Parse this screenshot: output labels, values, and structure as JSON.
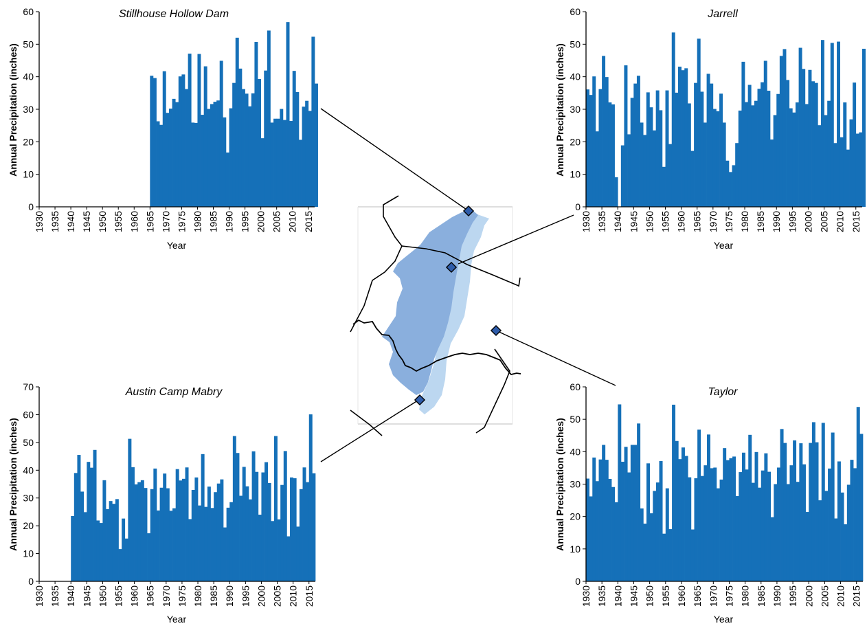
{
  "chart_data": [
    {
      "type": "bar",
      "title": "Stillhouse Hollow Dam",
      "xlabel": "Year",
      "ylabel": "Annual Precipitation (inches)",
      "ylim": [
        0,
        60
      ],
      "yticks": [
        0,
        10,
        20,
        30,
        40,
        50,
        60
      ],
      "xlim": [
        1930,
        2017
      ],
      "xtick_labels": [
        "1930",
        "1935",
        "1940",
        "1945",
        "1950",
        "1955",
        "1960",
        "1965",
        "1970",
        "1975",
        "1980",
        "1985",
        "1990",
        "1995",
        "2000",
        "2005",
        "2010",
        "2015"
      ],
      "bar_color": "#1570b8",
      "x_start": 1930,
      "values": [
        0,
        0,
        0,
        0,
        0,
        0,
        0,
        0,
        0,
        0,
        0,
        0,
        0,
        0,
        0,
        0,
        0,
        0,
        0,
        0,
        0,
        0,
        0,
        0,
        0,
        0,
        0,
        0,
        0,
        0,
        0,
        0,
        0,
        0,
        0,
        40.3,
        39.6,
        26.3,
        25.2,
        41.7,
        28.9,
        30.2,
        33.2,
        32.2,
        40.1,
        40.7,
        36.2,
        47.1,
        25.9,
        25.8,
        47.0,
        28.3,
        43.2,
        30.1,
        31.6,
        32.3,
        32.7,
        44.9,
        27.5,
        16.7,
        30.3,
        38.1,
        52.0,
        42.5,
        36.2,
        34.8,
        30.9,
        34.9,
        50.7,
        39.3,
        21.1,
        41.9,
        54.2,
        25.9,
        27.1,
        27.1,
        30.1,
        26.7,
        56.8,
        26.4,
        41.8,
        35.3,
        20.6,
        30.8,
        32.6,
        29.5,
        52.3,
        37.9
      ]
    },
    {
      "type": "bar",
      "title": "Jarrell",
      "xlabel": "Year",
      "ylabel": "Annual Precipitation (inches)",
      "ylim": [
        0,
        60
      ],
      "yticks": [
        0,
        10,
        20,
        30,
        40,
        50,
        60
      ],
      "xlim": [
        1930,
        2017
      ],
      "xtick_labels": [
        "1930",
        "1935",
        "1940",
        "1945",
        "1950",
        "1955",
        "1960",
        "1965",
        "1970",
        "1975",
        "1980",
        "1985",
        "1990",
        "1995",
        "2000",
        "2005",
        "2010",
        "2015"
      ],
      "bar_color": "#1570b8",
      "x_start": 1930,
      "values": [
        36.1,
        34.4,
        40.1,
        23.2,
        36.2,
        46.4,
        39.9,
        32.1,
        31.5,
        9.1,
        0,
        18.9,
        43.5,
        22.3,
        33.5,
        37.9,
        40.3,
        25.9,
        22.1,
        35.2,
        30.6,
        23.5,
        35.8,
        29.7,
        12.3,
        35.8,
        19.3,
        53.6,
        35.1,
        43.1,
        42.0,
        42.6,
        31.8,
        17.2,
        38.1,
        51.7,
        35.4,
        25.9,
        40.9,
        37.9,
        30.1,
        29.4,
        34.8,
        25.9,
        14.2,
        10.7,
        12.8,
        19.6,
        29.6,
        44.6,
        32.2,
        37.5,
        31.2,
        32.6,
        36.3,
        38.3,
        44.9,
        35.7,
        20.7,
        28.2,
        34.7,
        46.4,
        48.5,
        39.0,
        30.3,
        29.0,
        32.1,
        48.9,
        42.4,
        31.6,
        42.1,
        38.6,
        38.1,
        25.1,
        51.3,
        28.2,
        32.6,
        50.4,
        19.6,
        50.8,
        21.4,
        32.1,
        17.6,
        26.9,
        38.2,
        22.5,
        22.9,
        48.6
      ]
    },
    {
      "type": "bar",
      "title": "Austin Camp Mabry",
      "xlabel": "Year",
      "ylabel": "Annual Precipitation (inches)",
      "ylim": [
        0,
        70
      ],
      "yticks": [
        0,
        10,
        20,
        30,
        40,
        50,
        60,
        70
      ],
      "xlim": [
        1930,
        2017
      ],
      "xtick_labels": [
        "1930",
        "1935",
        "1940",
        "1945",
        "1950",
        "1955",
        "1960",
        "1965",
        "1970",
        "1975",
        "1980",
        "1985",
        "1990",
        "1995",
        "2000",
        "2005",
        "2010",
        "2015"
      ],
      "bar_color": "#1570b8",
      "x_start": 1930,
      "values": [
        0,
        0,
        0,
        0,
        0,
        0,
        0,
        0,
        0,
        0,
        23.5,
        39.0,
        45.5,
        32.3,
        24.9,
        43.0,
        40.9,
        47.3,
        21.9,
        21.0,
        36.4,
        26.0,
        28.9,
        27.9,
        29.6,
        11.6,
        22.6,
        15.4,
        51.3,
        41.1,
        34.9,
        35.7,
        36.4,
        33.6,
        17.3,
        33.2,
        40.6,
        25.5,
        33.7,
        38.8,
        33.5,
        25.4,
        26.3,
        40.4,
        36.3,
        36.9,
        41.0,
        22.4,
        32.9,
        37.4,
        27.3,
        45.8,
        26.8,
        34.1,
        26.4,
        32.1,
        35.2,
        36.7,
        19.4,
        26.5,
        28.5,
        52.3,
        46.2,
        30.8,
        41.2,
        34.2,
        29.5,
        46.8,
        39.4,
        24.0,
        39.2,
        42.9,
        35.4,
        21.7,
        52.3,
        22.3,
        34.7,
        46.9,
        16.2,
        37.4,
        37.1,
        19.7,
        33.2,
        41.0,
        35.7,
        60.1,
        38.9
      ]
    },
    {
      "type": "bar",
      "title": "Taylor",
      "xlabel": "Year",
      "ylabel": "Annual Precipitation (inches)",
      "ylim": [
        0,
        60
      ],
      "yticks": [
        0,
        10,
        20,
        30,
        40,
        50,
        60
      ],
      "xlim": [
        1930,
        2017
      ],
      "xtick_labels": [
        "1930",
        "1935",
        "1940",
        "1945",
        "1950",
        "1955",
        "1960",
        "1965",
        "1970",
        "1975",
        "1980",
        "1985",
        "1990",
        "1995",
        "2000",
        "2005",
        "2010",
        "2015"
      ],
      "bar_color": "#1570b8",
      "x_start": 1930,
      "values": [
        31.7,
        26.2,
        38.2,
        30.9,
        37.6,
        42.1,
        37.5,
        31.6,
        29.1,
        24.4,
        54.6,
        36.9,
        41.5,
        33.6,
        42.1,
        42.1,
        48.7,
        22.5,
        17.8,
        36.4,
        21.0,
        27.9,
        30.5,
        37.1,
        14.7,
        28.7,
        16.1,
        54.5,
        43.3,
        37.7,
        41.3,
        38.7,
        32.1,
        16.0,
        31.8,
        46.8,
        32.5,
        35.8,
        45.3,
        34.9,
        35.1,
        28.7,
        31.4,
        41.1,
        37.4,
        38.0,
        38.5,
        26.3,
        33.7,
        39.7,
        34.5,
        45.2,
        30.4,
        39.9,
        28.9,
        34.2,
        39.5,
        33.8,
        19.8,
        30.0,
        35.1,
        47.0,
        42.7,
        30.0,
        35.8,
        43.5,
        30.7,
        42.6,
        36.1,
        21.4,
        42.7,
        49.1,
        42.9,
        25.0,
        48.9,
        27.9,
        34.8,
        45.9,
        19.4,
        37.0,
        27.4,
        17.6,
        29.8,
        37.5,
        34.9,
        53.8,
        45.5
      ]
    }
  ]
}
